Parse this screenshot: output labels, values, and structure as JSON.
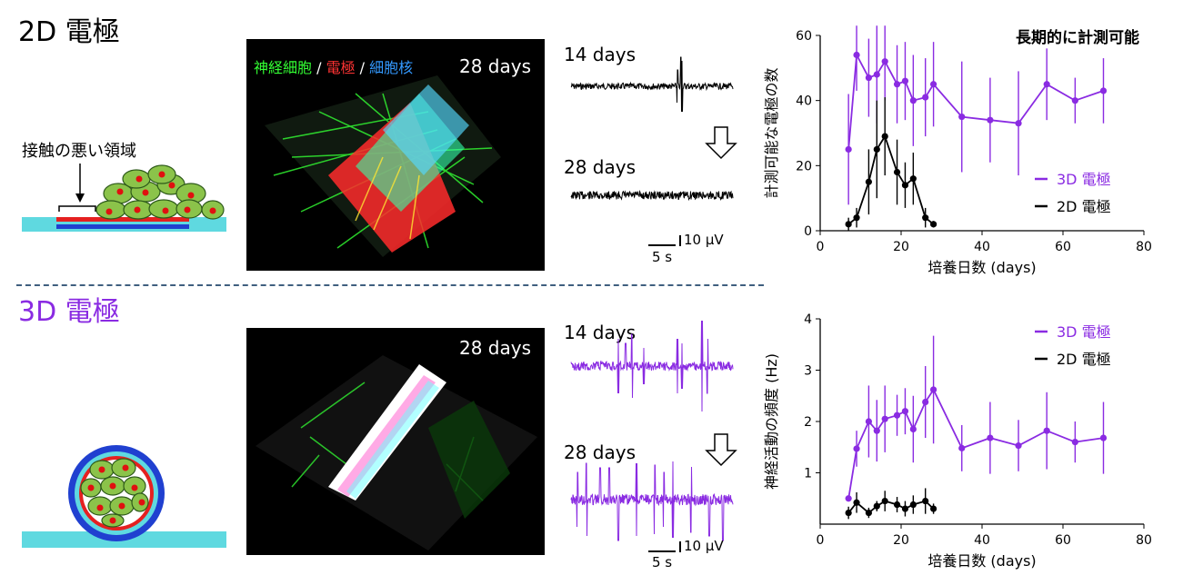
{
  "sections": {
    "top_title": "2D 電極",
    "bottom_title": "3D 電極"
  },
  "diagram": {
    "contact_label": "接触の悪い領域"
  },
  "images": {
    "top_days": "28 days",
    "bottom_days": "28 days",
    "channel_neuron": "神経細胞",
    "channel_electrode": "電極",
    "channel_nucleus": "細胞核",
    "separator": " / "
  },
  "traces": {
    "top_label_1": "14 days",
    "top_label_2": "28 days",
    "bottom_label_1": "14 days",
    "bottom_label_2": "28 days",
    "scale_time": "5 s",
    "scale_voltage": "10 μV"
  },
  "colors": {
    "purple": "#8a2be2",
    "black": "#000000",
    "green": "#33ff33",
    "red": "#ff3333",
    "blue": "#3399ff",
    "cyan": "#55d8e0"
  },
  "chart_data": [
    {
      "type": "line",
      "title": "長期的に計測可能",
      "xlabel": "培養日数 (days)",
      "ylabel": "計測可能な電極の数",
      "xlim": [
        0,
        80
      ],
      "ylim": [
        0,
        60
      ],
      "xticks": [
        0,
        20,
        40,
        60,
        80
      ],
      "yticks": [
        0,
        20,
        40,
        60
      ],
      "legend_position": "right-middle",
      "series": [
        {
          "name": "3D 電極",
          "color": "#8a2be2",
          "x": [
            7,
            9,
            12,
            14,
            16,
            19,
            21,
            23,
            26,
            28,
            35,
            42,
            49,
            56,
            63,
            70
          ],
          "y": [
            25,
            54,
            47,
            48,
            52,
            45,
            46,
            40,
            41,
            45,
            35,
            34,
            33,
            45,
            40,
            43
          ],
          "err": [
            17,
            11,
            12,
            15,
            12,
            12,
            12,
            14,
            12,
            13,
            17,
            13,
            16,
            11,
            7,
            10
          ]
        },
        {
          "name": "2D 電極",
          "color": "#000000",
          "x": [
            7,
            9,
            12,
            14,
            16,
            19,
            21,
            23,
            26,
            28
          ],
          "y": [
            2,
            4,
            15,
            25,
            29,
            18,
            14,
            16,
            4,
            2
          ],
          "err": [
            2,
            3,
            10,
            15,
            12,
            10,
            7,
            8,
            3,
            1
          ]
        }
      ]
    },
    {
      "type": "line",
      "xlabel": "培養日数 (days)",
      "ylabel": "神経活動の頻度 (Hz)",
      "xlim": [
        0,
        80
      ],
      "ylim": [
        0,
        4
      ],
      "xticks": [
        0,
        20,
        40,
        60,
        80
      ],
      "yticks": [
        1,
        2,
        3,
        4
      ],
      "legend_position": "top-right",
      "series": [
        {
          "name": "3D 電極",
          "color": "#8a2be2",
          "x": [
            7,
            9,
            12,
            14,
            16,
            19,
            21,
            23,
            26,
            28,
            35,
            42,
            49,
            56,
            63,
            70
          ],
          "y": [
            0.5,
            1.47,
            2.0,
            1.82,
            2.05,
            2.12,
            2.2,
            1.85,
            2.38,
            2.62,
            1.48,
            1.68,
            1.53,
            1.82,
            1.6,
            1.68
          ],
          "err": [
            0.05,
            0.35,
            0.7,
            0.6,
            0.65,
            0.4,
            0.45,
            0.65,
            0.7,
            1.05,
            0.45,
            0.7,
            0.5,
            0.75,
            0.4,
            0.7
          ]
        },
        {
          "name": "2D 電極",
          "color": "#000000",
          "x": [
            7,
            9,
            12,
            14,
            16,
            19,
            21,
            23,
            26,
            28
          ],
          "y": [
            0.22,
            0.42,
            0.22,
            0.35,
            0.45,
            0.38,
            0.3,
            0.38,
            0.45,
            0.3
          ],
          "err": [
            0.12,
            0.2,
            0.1,
            0.1,
            0.2,
            0.15,
            0.15,
            0.18,
            0.25,
            0.1
          ]
        }
      ]
    }
  ]
}
